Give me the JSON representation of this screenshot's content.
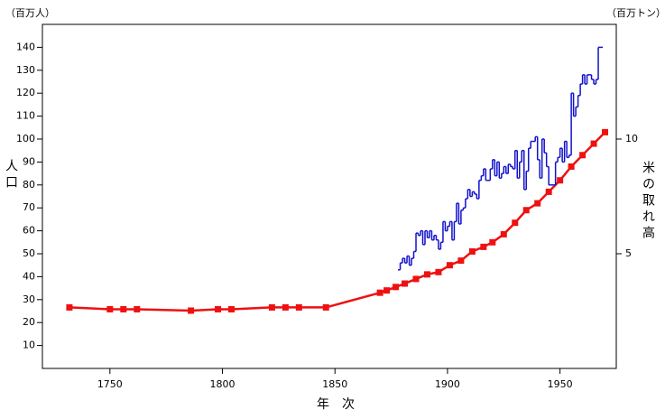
{
  "chart_data": {
    "type": "line",
    "ylabel_unit": "（百万人）",
    "y2label_unit": "（百万トン）",
    "ylabel": "人口",
    "y2label": "米の取れ高",
    "xlabel": "年　次",
    "xlim": [
      1720,
      1975
    ],
    "xticks": [
      1750,
      1800,
      1850,
      1900,
      1950
    ],
    "ylim": [
      0,
      150
    ],
    "yticks": [
      10,
      20,
      30,
      40,
      50,
      60,
      70,
      80,
      90,
      100,
      110,
      120,
      130,
      140
    ],
    "y2lim": [
      0,
      15
    ],
    "y2ticks": [
      5,
      10
    ],
    "series": [
      {
        "color": "#ee1111",
        "marker": "square",
        "x": [
          1732,
          1750,
          1756,
          1762,
          1786,
          1798,
          1804,
          1822,
          1828,
          1834,
          1846,
          1870,
          1873,
          1877,
          1881,
          1886,
          1891,
          1896,
          1901,
          1906,
          1911,
          1916,
          1920,
          1925,
          1930,
          1935,
          1940,
          1945,
          1950,
          1955,
          1960,
          1965,
          1970
        ],
        "values": [
          26.6,
          25.8,
          25.8,
          25.8,
          25.2,
          25.8,
          25.8,
          26.6,
          26.6,
          26.6,
          26.6,
          33,
          34,
          35.5,
          37,
          39,
          41,
          42,
          45,
          47,
          51,
          53,
          55,
          58.5,
          63.5,
          69,
          72,
          77,
          82,
          88,
          93,
          98,
          103
        ]
      },
      {
        "color": "#1111cc",
        "axis": "y2",
        "step": "post",
        "x": [
          1878,
          1879,
          1880,
          1881,
          1882,
          1883,
          1884,
          1885,
          1886,
          1887,
          1888,
          1889,
          1890,
          1891,
          1892,
          1893,
          1894,
          1895,
          1896,
          1897,
          1898,
          1899,
          1900,
          1901,
          1902,
          1903,
          1904,
          1905,
          1906,
          1907,
          1908,
          1909,
          1910,
          1911,
          1912,
          1913,
          1914,
          1915,
          1916,
          1917,
          1918,
          1919,
          1920,
          1921,
          1922,
          1923,
          1924,
          1925,
          1926,
          1927,
          1928,
          1929,
          1930,
          1931,
          1932,
          1933,
          1934,
          1935,
          1936,
          1937,
          1938,
          1939,
          1940,
          1941,
          1942,
          1943,
          1944,
          1945,
          1946,
          1947,
          1948,
          1949,
          1950,
          1951,
          1952,
          1953,
          1954,
          1955,
          1956,
          1957,
          1958,
          1959,
          1960,
          1961,
          1962,
          1963,
          1964,
          1965,
          1966,
          1967,
          1968
        ],
        "values": [
          4.3,
          4.6,
          4.8,
          4.6,
          4.9,
          4.5,
          4.8,
          5.1,
          5.9,
          5.8,
          6.0,
          5.4,
          6.0,
          5.7,
          6.0,
          5.6,
          5.8,
          5.6,
          5.2,
          5.5,
          6.4,
          6.0,
          6.2,
          6.4,
          5.6,
          6.4,
          7.2,
          6.3,
          6.9,
          7.0,
          7.4,
          7.8,
          7.5,
          7.7,
          7.6,
          7.4,
          8.2,
          8.4,
          8.7,
          8.2,
          8.2,
          8.7,
          9.1,
          8.4,
          9.0,
          8.3,
          8.5,
          8.8,
          8.5,
          8.9,
          8.8,
          8.7,
          9.5,
          8.3,
          9.0,
          9.5,
          7.8,
          8.6,
          9.6,
          9.9,
          9.9,
          10.1,
          9.1,
          8.3,
          10.0,
          9.4,
          8.8,
          8.0,
          8.0,
          8.0,
          9.0,
          9.2,
          9.6,
          9.0,
          9.9,
          9.2,
          9.3,
          12.0,
          11.0,
          11.4,
          11.9,
          12.4,
          12.8,
          12.4,
          12.8,
          12.8,
          12.6,
          12.4,
          12.6,
          14.0,
          14.0
        ]
      }
    ]
  }
}
